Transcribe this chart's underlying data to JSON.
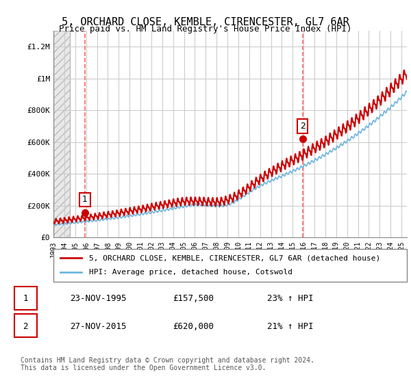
{
  "title": "5, ORCHARD CLOSE, KEMBLE, CIRENCESTER, GL7 6AR",
  "subtitle": "Price paid vs. HM Land Registry's House Price Index (HPI)",
  "ylim": [
    0,
    1300000
  ],
  "yticks": [
    0,
    200000,
    400000,
    600000,
    800000,
    1000000,
    1200000
  ],
  "ytick_labels": [
    "£0",
    "£200K",
    "£400K",
    "£600K",
    "£800K",
    "£1M",
    "£1.2M"
  ],
  "sale1_date_num": 1995.9,
  "sale1_price": 157500,
  "sale1_label": "1",
  "sale2_date_num": 2015.9,
  "sale2_price": 620000,
  "sale2_label": "2",
  "hpi_line_color": "#6eb5e0",
  "price_line_color": "#cc0000",
  "sale_marker_color": "#cc0000",
  "vline_color": "#ff6666",
  "background_hatch_color": "#d0d0d0",
  "legend_label_price": "5, ORCHARD CLOSE, KEMBLE, CIRENCESTER, GL7 6AR (detached house)",
  "legend_label_hpi": "HPI: Average price, detached house, Cotswold",
  "table_row1": [
    "1",
    "23-NOV-1995",
    "£157,500",
    "23% ↑ HPI"
  ],
  "table_row2": [
    "2",
    "27-NOV-2015",
    "£620,000",
    "21% ↑ HPI"
  ],
  "footnote": "Contains HM Land Registry data © Crown copyright and database right 2024.\nThis data is licensed under the Open Government Licence v3.0.",
  "xmin": 1993,
  "xmax": 2025.5,
  "grid_color": "#cccccc",
  "title_fontsize": 11,
  "subtitle_fontsize": 9,
  "axis_fontsize": 8
}
